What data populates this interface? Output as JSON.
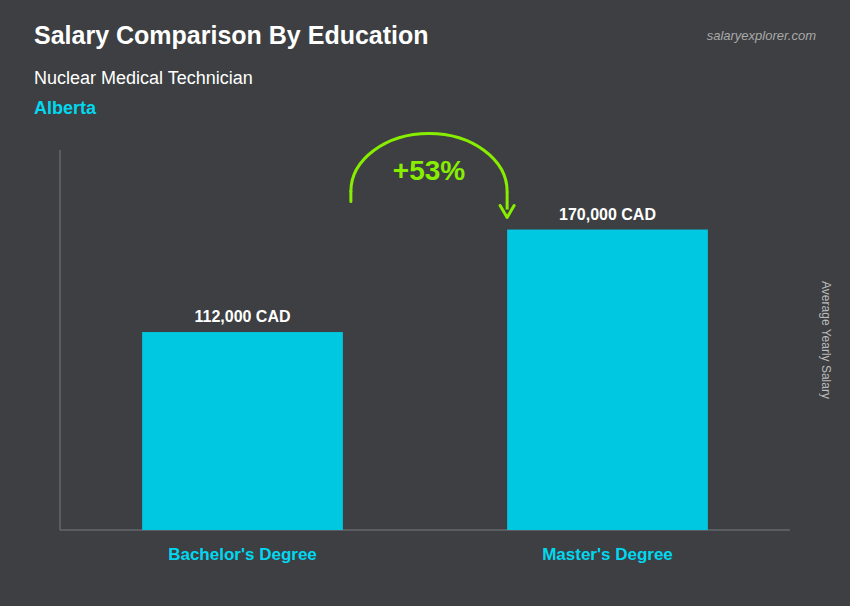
{
  "chart_data": {
    "type": "bar",
    "title": "Salary Comparison By Education",
    "subtitle": "Nuclear Medical Technician",
    "y_label": "Average Yearly Salary",
    "annotations": [
      "Alberta",
      "+53%",
      "salaryexplorer.com"
    ],
    "categories": [
      "Bachelor's Degree",
      "Master's Degree"
    ],
    "values": [
      112000,
      170000
    ],
    "value_labels": [
      "112,000 CAD",
      "170,000 CAD"
    ],
    "color": "#00c8e0",
    "ylim": [
      0,
      215000
    ],
    "grid": false,
    "data_labels": true,
    "tick_labels": "x"
  }
}
